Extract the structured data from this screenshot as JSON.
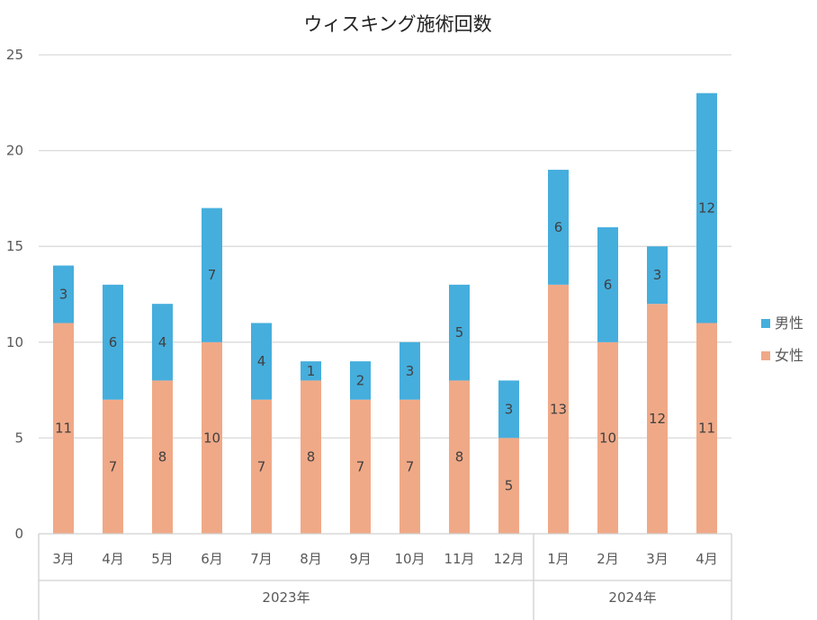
{
  "chart_data": {
    "type": "bar",
    "stacked": true,
    "title": "ウィスキング施術回数",
    "categories": [
      "3月",
      "4月",
      "5月",
      "6月",
      "7月",
      "8月",
      "9月",
      "10月",
      "11月",
      "12月",
      "1月",
      "2月",
      "3月",
      "4月"
    ],
    "groups": [
      {
        "label": "2023年",
        "count": 10
      },
      {
        "label": "2024年",
        "count": 4
      }
    ],
    "series": [
      {
        "name": "女性",
        "color": "#F0A987",
        "values": [
          11,
          7,
          8,
          10,
          7,
          8,
          7,
          7,
          8,
          5,
          13,
          10,
          12,
          11
        ]
      },
      {
        "name": "男性",
        "color": "#45AEDD",
        "values": [
          3,
          6,
          4,
          7,
          4,
          1,
          2,
          3,
          5,
          3,
          6,
          6,
          3,
          12
        ]
      }
    ],
    "ylim": [
      0,
      25
    ],
    "yticks": [
      0,
      5,
      10,
      15,
      20,
      25
    ],
    "legend_order": [
      "男性",
      "女性"
    ],
    "legend_position": "right",
    "grid": true
  }
}
